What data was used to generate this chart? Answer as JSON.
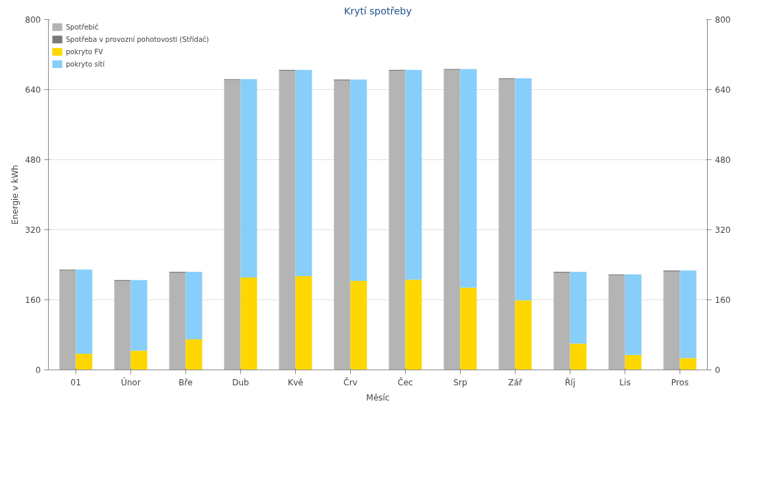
{
  "chart_data": {
    "type": "bar",
    "title": "Krytí spotřeby",
    "xlabel": "Měsíc",
    "ylabel": "Energie v kWh",
    "categories": [
      "01",
      "Únor",
      "Bře",
      "Dub",
      "Kvě",
      "Črv",
      "Čec",
      "Srp",
      "Zář",
      "Říj",
      "Lis",
      "Pros"
    ],
    "stacked": true,
    "series": [
      {
        "name": "Spotřebič",
        "color": "#b4b4b4",
        "axis": "y2",
        "values": [
          227,
          203,
          222,
          662,
          683,
          661,
          683,
          685,
          664,
          222,
          216,
          225
        ]
      },
      {
        "name": "Spotřeba v provozní pohotovosti (Střídač)",
        "color": "#7a7a7a",
        "axis": "y2",
        "values": [
          2,
          2,
          2,
          2,
          2,
          2,
          2,
          2,
          2,
          2,
          2,
          2
        ]
      },
      {
        "name": "pokryto FV",
        "color": "#ffd700",
        "values": [
          37,
          44,
          70,
          211,
          214,
          203,
          206,
          188,
          159,
          60,
          34,
          27
        ]
      },
      {
        "name": "pokryto sítí",
        "color": "#87cefa",
        "values": [
          192,
          161,
          154,
          453,
          471,
          460,
          479,
          499,
          507,
          164,
          184,
          200
        ]
      }
    ],
    "ylim": [
      0,
      800
    ],
    "yticks": [
      0,
      160,
      320,
      480,
      640,
      800
    ],
    "y2lim": [
      0,
      800
    ],
    "y2ticks": [
      0,
      160,
      320,
      480,
      640,
      800
    ],
    "grid": "y",
    "legend": "top left"
  }
}
